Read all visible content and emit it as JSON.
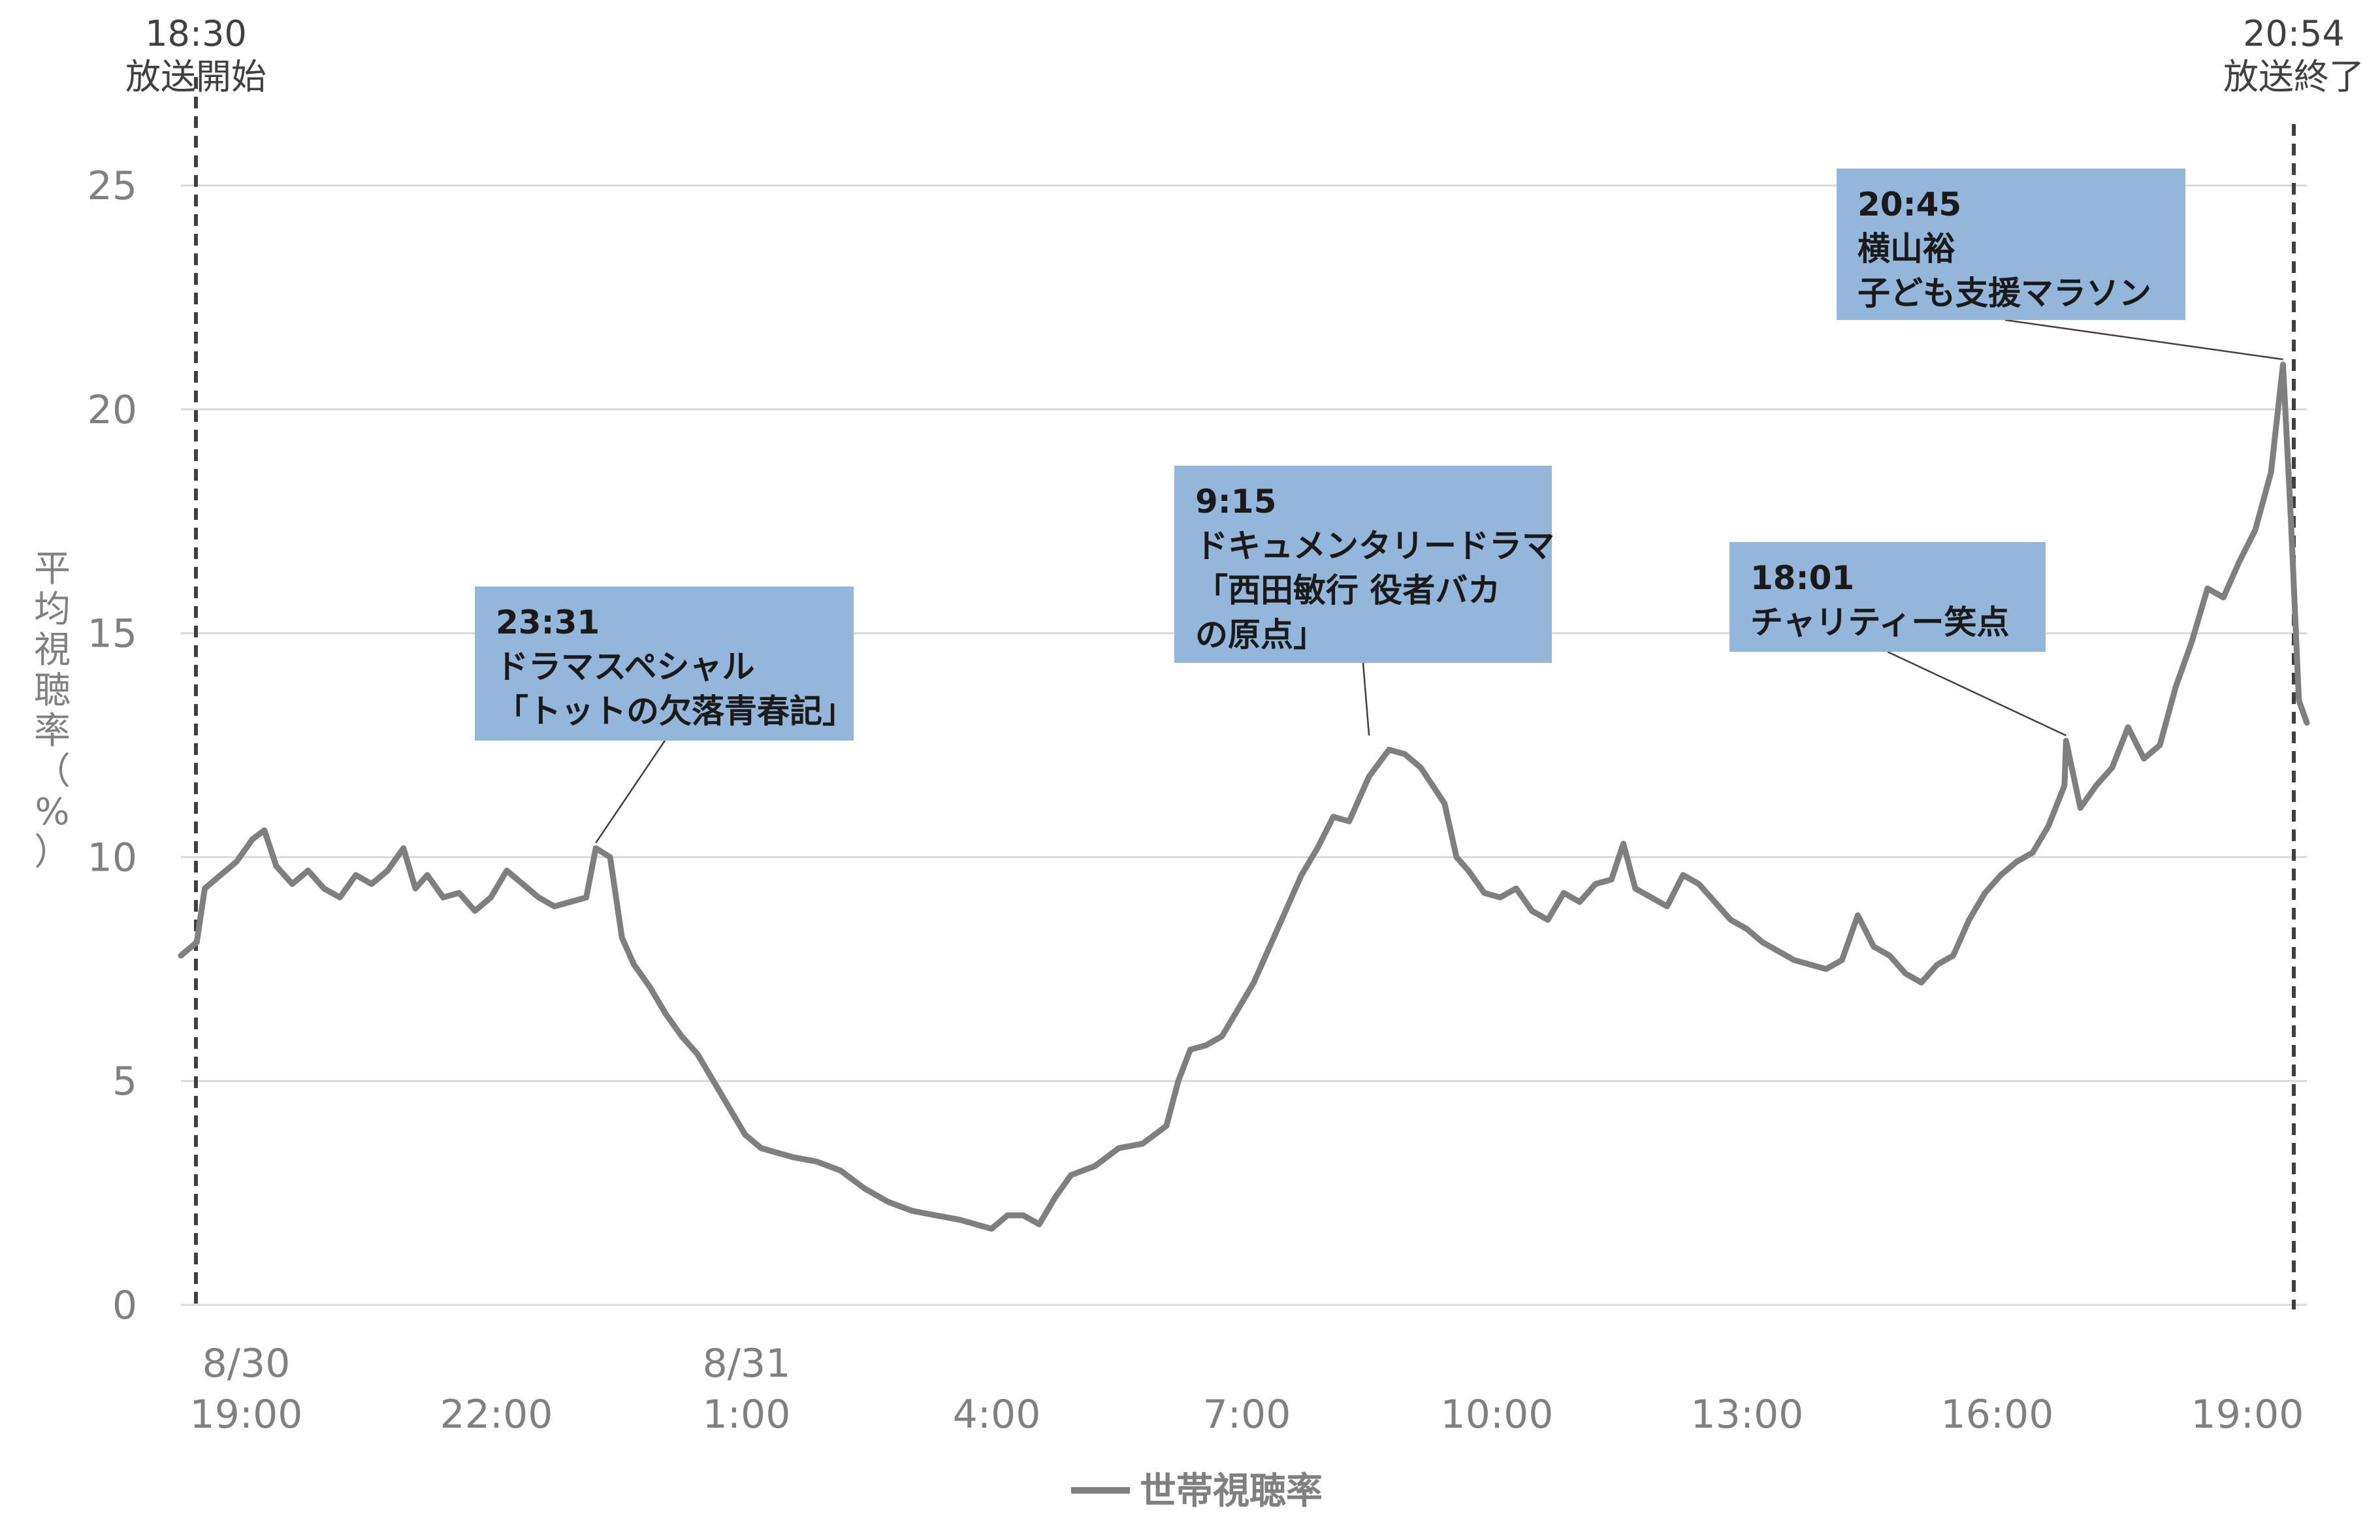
{
  "chart_data": {
    "type": "line",
    "title": "",
    "xlabel": "",
    "ylabel": "平均視聴率（%）",
    "ylim": [
      0,
      25
    ],
    "yticks": [
      0,
      5,
      10,
      15,
      20,
      25
    ],
    "grid": true,
    "xlim_hours": [
      18.3,
      44.1
    ],
    "x_unit": "hours from 8/30 0:00",
    "x_tick_labels": [
      {
        "h": 19,
        "label": "19:00",
        "date": "8/30"
      },
      {
        "h": 22,
        "label": "22:00"
      },
      {
        "h": 25,
        "label": "1:00",
        "date": "8/31"
      },
      {
        "h": 28,
        "label": "4:00"
      },
      {
        "h": 31,
        "label": "7:00"
      },
      {
        "h": 34,
        "label": "10:00"
      },
      {
        "h": 37,
        "label": "13:00"
      },
      {
        "h": 40,
        "label": "16:00"
      },
      {
        "h": 43,
        "label": "19:00"
      }
    ],
    "broadcast_start": {
      "h": 18.5,
      "time": "18:30",
      "label": "放送開始"
    },
    "broadcast_end": {
      "h": 44.9,
      "time": "20:54",
      "label": "放送終了"
    },
    "legend": "世帯視聴率",
    "line_color": "#7f7f7f",
    "annotation_color": "#94b6da",
    "series": [
      {
        "name": "世帯視聴率",
        "points": [
          [
            18.3,
            7.8
          ],
          [
            18.5,
            8.1
          ],
          [
            18.6,
            9.3
          ],
          [
            18.8,
            9.6
          ],
          [
            19.0,
            9.9
          ],
          [
            19.2,
            10.4
          ],
          [
            19.35,
            10.6
          ],
          [
            19.5,
            9.8
          ],
          [
            19.7,
            9.4
          ],
          [
            19.9,
            9.7
          ],
          [
            20.1,
            9.3
          ],
          [
            20.3,
            9.1
          ],
          [
            20.5,
            9.6
          ],
          [
            20.7,
            9.4
          ],
          [
            20.9,
            9.7
          ],
          [
            21.1,
            10.2
          ],
          [
            21.25,
            9.3
          ],
          [
            21.4,
            9.6
          ],
          [
            21.6,
            9.1
          ],
          [
            21.8,
            9.2
          ],
          [
            22.0,
            8.8
          ],
          [
            22.2,
            9.1
          ],
          [
            22.4,
            9.7
          ],
          [
            22.6,
            9.4
          ],
          [
            22.8,
            9.1
          ],
          [
            23.0,
            8.9
          ],
          [
            23.2,
            9.0
          ],
          [
            23.4,
            9.1
          ],
          [
            23.52,
            10.2
          ],
          [
            23.7,
            10.0
          ],
          [
            23.85,
            8.2
          ],
          [
            24.0,
            7.6
          ],
          [
            24.2,
            7.1
          ],
          [
            24.4,
            6.5
          ],
          [
            24.6,
            6.0
          ],
          [
            24.8,
            5.6
          ],
          [
            25.0,
            5.0
          ],
          [
            25.2,
            4.4
          ],
          [
            25.4,
            3.8
          ],
          [
            25.6,
            3.5
          ],
          [
            25.8,
            3.4
          ],
          [
            26.0,
            3.3
          ],
          [
            26.3,
            3.2
          ],
          [
            26.6,
            3.0
          ],
          [
            26.9,
            2.6
          ],
          [
            27.2,
            2.3
          ],
          [
            27.5,
            2.1
          ],
          [
            27.8,
            2.0
          ],
          [
            28.1,
            1.9
          ],
          [
            28.3,
            1.8
          ],
          [
            28.5,
            1.7
          ],
          [
            28.7,
            2.0
          ],
          [
            28.9,
            2.0
          ],
          [
            29.1,
            1.8
          ],
          [
            29.3,
            2.4
          ],
          [
            29.5,
            2.9
          ],
          [
            29.8,
            3.1
          ],
          [
            30.1,
            3.5
          ],
          [
            30.4,
            3.6
          ],
          [
            30.7,
            4.0
          ],
          [
            30.85,
            5.0
          ],
          [
            31.0,
            5.7
          ],
          [
            31.2,
            5.8
          ],
          [
            31.4,
            6.0
          ],
          [
            31.6,
            6.6
          ],
          [
            31.8,
            7.2
          ],
          [
            32.0,
            8.0
          ],
          [
            32.2,
            8.8
          ],
          [
            32.4,
            9.6
          ],
          [
            32.6,
            10.2
          ],
          [
            32.8,
            10.9
          ],
          [
            33.0,
            10.8
          ],
          [
            33.25,
            11.8
          ],
          [
            33.5,
            12.4
          ],
          [
            33.7,
            12.3
          ],
          [
            33.9,
            12.0
          ],
          [
            34.05,
            11.6
          ],
          [
            34.2,
            11.2
          ],
          [
            34.35,
            10.0
          ],
          [
            34.5,
            9.7
          ],
          [
            34.7,
            9.2
          ],
          [
            34.9,
            9.1
          ],
          [
            35.1,
            9.3
          ],
          [
            35.3,
            8.8
          ],
          [
            35.5,
            8.6
          ],
          [
            35.7,
            9.2
          ],
          [
            35.9,
            9.0
          ],
          [
            36.1,
            9.4
          ],
          [
            36.3,
            9.5
          ],
          [
            36.45,
            10.3
          ],
          [
            36.6,
            9.3
          ],
          [
            36.8,
            9.1
          ],
          [
            37.0,
            8.9
          ],
          [
            37.2,
            9.6
          ],
          [
            37.4,
            9.4
          ],
          [
            37.6,
            9.0
          ],
          [
            37.8,
            8.6
          ],
          [
            38.0,
            8.4
          ],
          [
            38.2,
            8.1
          ],
          [
            38.4,
            7.9
          ],
          [
            38.6,
            7.7
          ],
          [
            38.8,
            7.6
          ],
          [
            39.0,
            7.5
          ],
          [
            39.2,
            7.7
          ],
          [
            39.4,
            8.7
          ],
          [
            39.6,
            8.0
          ],
          [
            39.8,
            7.8
          ],
          [
            40.0,
            7.4
          ],
          [
            40.2,
            7.2
          ],
          [
            40.4,
            7.6
          ],
          [
            40.6,
            7.8
          ],
          [
            40.8,
            8.6
          ],
          [
            41.0,
            9.2
          ],
          [
            41.2,
            9.6
          ],
          [
            41.4,
            9.9
          ],
          [
            41.6,
            10.1
          ],
          [
            41.8,
            10.7
          ],
          [
            42.0,
            11.6
          ],
          [
            42.02,
            12.6
          ],
          [
            42.2,
            11.1
          ],
          [
            42.4,
            11.6
          ],
          [
            42.6,
            12.0
          ],
          [
            42.8,
            12.9
          ],
          [
            43.0,
            12.2
          ],
          [
            43.2,
            12.5
          ],
          [
            43.4,
            13.8
          ],
          [
            43.6,
            14.8
          ],
          [
            43.8,
            16.0
          ],
          [
            44.0,
            15.8
          ],
          [
            44.2,
            16.6
          ],
          [
            44.4,
            17.3
          ],
          [
            44.6,
            18.6
          ],
          [
            44.75,
            21.0
          ],
          [
            44.85,
            17.5
          ],
          [
            44.95,
            13.5
          ],
          [
            45.05,
            13.0
          ]
        ]
      }
    ],
    "annotations": [
      {
        "h": 23.52,
        "v": 10.2,
        "lines": [
          "23:31",
          "ドラマスペシャル",
          "「トットの欠落青春記」"
        ]
      },
      {
        "h": 33.25,
        "v": 12.6,
        "lines": [
          "9:15",
          "ドキュメンタリードラマ",
          "「西田敏行 役者バカ",
          "の原点」"
        ]
      },
      {
        "h": 42.02,
        "v": 12.6,
        "lines": [
          "18:01",
          "チャリティー笑点"
        ]
      },
      {
        "h": 44.75,
        "v": 21.0,
        "lines": [
          "20:45",
          "横山裕",
          "子ども支援マラソン"
        ]
      }
    ]
  }
}
